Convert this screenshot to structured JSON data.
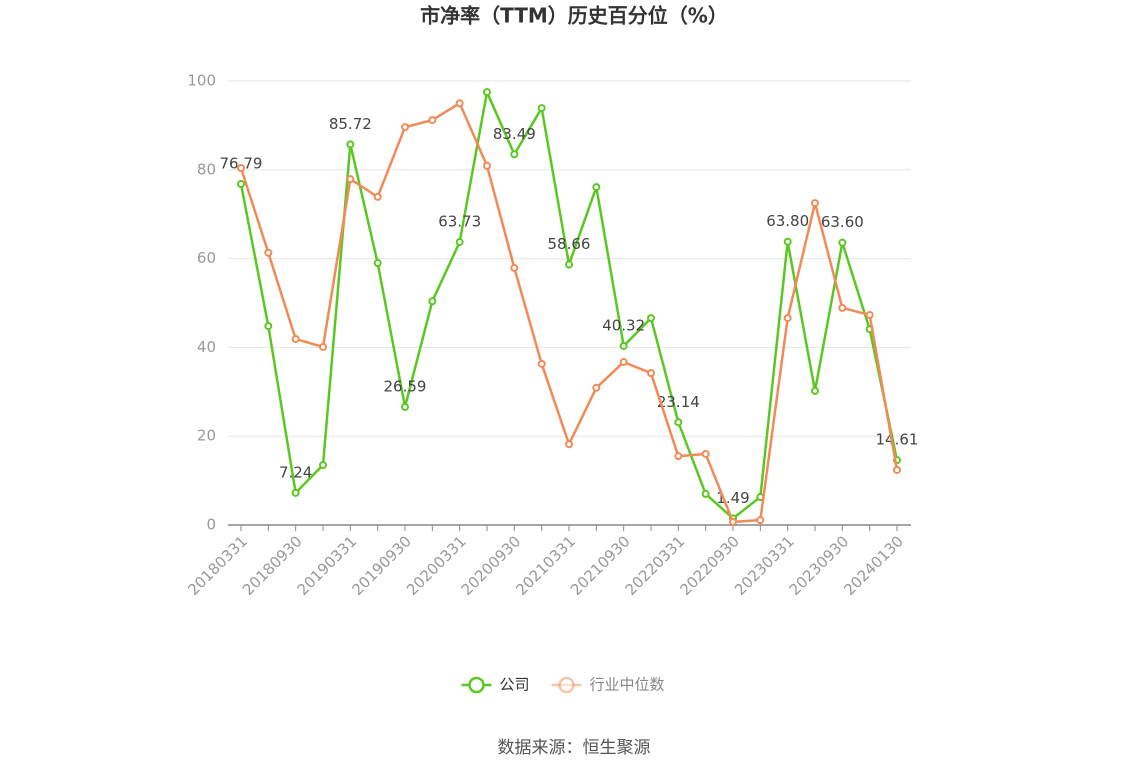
{
  "chart_data": {
    "type": "line",
    "title": "市净率（TTM）历史百分位（%）",
    "source": "数据来源：恒生聚源",
    "categories": [
      "20180331",
      null,
      "20180930",
      null,
      "20190331",
      null,
      "20190930",
      null,
      "20200331",
      null,
      "20200930",
      null,
      "20210331",
      null,
      "20210930",
      null,
      "20220331",
      null,
      "20220930",
      null,
      "20230331",
      null,
      "20230930",
      null,
      "20240130"
    ],
    "series": [
      {
        "name": "公司",
        "color": "#5ac821",
        "values": [
          76.79,
          44.8,
          7.24,
          13.5,
          85.72,
          59.0,
          26.59,
          50.4,
          63.73,
          97.5,
          83.49,
          93.9,
          58.66,
          76.1,
          40.32,
          46.6,
          23.14,
          7.0,
          1.49,
          6.3,
          63.8,
          30.2,
          63.6,
          44.1,
          14.61
        ],
        "value_labels": [
          "76.79",
          null,
          "7.24",
          null,
          "85.72",
          null,
          "26.59",
          null,
          "63.73",
          null,
          "83.49",
          null,
          "58.66",
          null,
          "40.32",
          null,
          "23.14",
          null,
          "1.49",
          null,
          "63.80",
          null,
          "63.60",
          null,
          "14.61"
        ]
      },
      {
        "name": "行业中位数",
        "color": "#f28a57",
        "values": [
          80.4,
          61.3,
          41.9,
          40.1,
          77.9,
          73.9,
          89.6,
          91.2,
          95.0,
          80.9,
          57.9,
          36.3,
          18.2,
          30.9,
          36.7,
          34.2,
          15.5,
          16.0,
          0.7,
          1.1,
          46.6,
          72.5,
          48.9,
          47.3,
          12.4
        ]
      }
    ],
    "ylim": [
      0,
      100
    ],
    "yticks": [
      0,
      20,
      40,
      60,
      80,
      100
    ],
    "grid": true,
    "legend": "bottom"
  }
}
